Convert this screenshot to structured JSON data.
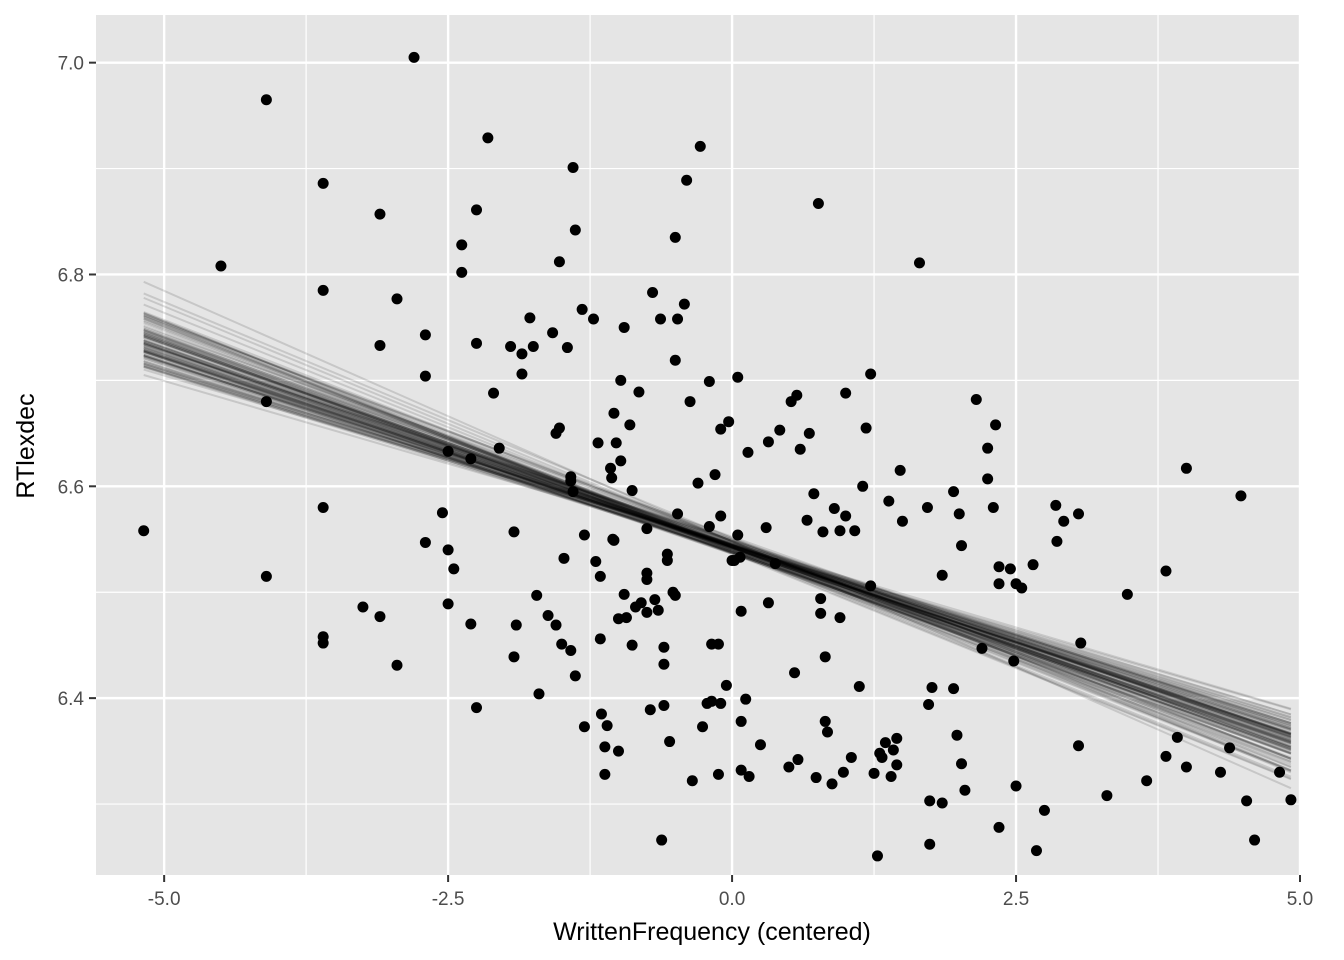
{
  "chart_data": {
    "type": "scatter",
    "title": "",
    "xlabel": "WrittenFrequency (centered)",
    "ylabel": "RTlexdec",
    "xlim": [
      -5.6,
      5.0
    ],
    "ylim": [
      6.233,
      7.045
    ],
    "x_ticks": [
      -5.0,
      -2.5,
      0.0,
      2.5,
      5.0
    ],
    "x_tick_labels": [
      "-5.0",
      "-2.5",
      "0.0",
      "2.5",
      "5.0"
    ],
    "y_ticks": [
      6.4,
      6.6,
      6.8,
      7.0
    ],
    "y_tick_labels": [
      "6.4",
      "6.6",
      "6.8",
      "7.0"
    ],
    "grid": true,
    "legend": "none",
    "colors": {
      "panel": "#e5e5e5",
      "grid": "#ffffff",
      "points": "#000000",
      "lines": "#000000"
    },
    "regression_lines": {
      "count": 100,
      "x_range": [
        -5.18,
        4.92
      ],
      "intercept_center": 6.543,
      "slope_center": -0.0378,
      "intercept_spread": 0.006,
      "slope_spread": 0.0045,
      "opacity": 0.13
    },
    "points": [
      [
        -5.18,
        6.558
      ],
      [
        -4.5,
        6.808
      ],
      [
        -4.1,
        6.965
      ],
      [
        -4.1,
        6.68
      ],
      [
        -4.1,
        6.515
      ],
      [
        -3.6,
        6.886
      ],
      [
        -3.6,
        6.785
      ],
      [
        -3.6,
        6.58
      ],
      [
        -3.6,
        6.458
      ],
      [
        -3.6,
        6.452
      ],
      [
        -3.25,
        6.486
      ],
      [
        -3.1,
        6.857
      ],
      [
        -3.1,
        6.733
      ],
      [
        -3.1,
        6.477
      ],
      [
        -2.95,
        6.777
      ],
      [
        -2.95,
        6.431
      ],
      [
        -2.8,
        7.005
      ],
      [
        -2.7,
        6.743
      ],
      [
        -2.7,
        6.704
      ],
      [
        -2.7,
        6.547
      ],
      [
        -2.55,
        6.575
      ],
      [
        -2.5,
        6.633
      ],
      [
        -2.5,
        6.54
      ],
      [
        -2.5,
        6.489
      ],
      [
        -2.45,
        6.522
      ],
      [
        -2.38,
        6.828
      ],
      [
        -2.38,
        6.802
      ],
      [
        -2.3,
        6.626
      ],
      [
        -2.3,
        6.47
      ],
      [
        -2.25,
        6.861
      ],
      [
        -2.25,
        6.735
      ],
      [
        -2.25,
        6.391
      ],
      [
        -2.15,
        6.929
      ],
      [
        -2.1,
        6.688
      ],
      [
        -2.05,
        6.636
      ],
      [
        -1.95,
        6.732
      ],
      [
        -1.92,
        6.557
      ],
      [
        -1.92,
        6.439
      ],
      [
        -1.9,
        6.469
      ],
      [
        -1.85,
        6.725
      ],
      [
        -1.85,
        6.706
      ],
      [
        -1.78,
        6.759
      ],
      [
        -1.75,
        6.732
      ],
      [
        -1.72,
        6.497
      ],
      [
        -1.7,
        6.404
      ],
      [
        -1.62,
        6.478
      ],
      [
        -1.58,
        6.745
      ],
      [
        -1.55,
        6.65
      ],
      [
        -1.55,
        6.469
      ],
      [
        -1.52,
        6.812
      ],
      [
        -1.52,
        6.655
      ],
      [
        -1.5,
        6.451
      ],
      [
        -1.48,
        6.532
      ],
      [
        -1.45,
        6.731
      ],
      [
        -1.42,
        6.609
      ],
      [
        -1.42,
        6.605
      ],
      [
        -1.42,
        6.445
      ],
      [
        -1.4,
        6.901
      ],
      [
        -1.4,
        6.595
      ],
      [
        -1.38,
        6.842
      ],
      [
        -1.38,
        6.421
      ],
      [
        -1.32,
        6.767
      ],
      [
        -1.3,
        6.554
      ],
      [
        -1.3,
        6.373
      ],
      [
        -1.22,
        6.758
      ],
      [
        -1.2,
        6.529
      ],
      [
        -1.18,
        6.641
      ],
      [
        -1.16,
        6.515
      ],
      [
        -1.16,
        6.456
      ],
      [
        -1.15,
        6.385
      ],
      [
        -1.12,
        6.354
      ],
      [
        -1.12,
        6.328
      ],
      [
        -1.1,
        6.374
      ],
      [
        -1.07,
        6.617
      ],
      [
        -1.06,
        6.608
      ],
      [
        -1.05,
        6.55
      ],
      [
        -1.04,
        6.669
      ],
      [
        -1.04,
        6.549
      ],
      [
        -1.02,
        6.641
      ],
      [
        -1.0,
        6.475
      ],
      [
        -1.0,
        6.35
      ],
      [
        -0.98,
        6.624
      ],
      [
        -0.98,
        6.7
      ],
      [
        -0.95,
        6.75
      ],
      [
        -0.95,
        6.498
      ],
      [
        -0.93,
        6.476
      ],
      [
        -0.9,
        6.658
      ],
      [
        -0.88,
        6.596
      ],
      [
        -0.88,
        6.45
      ],
      [
        -0.85,
        6.486
      ],
      [
        -0.82,
        6.689
      ],
      [
        -0.8,
        6.49
      ],
      [
        -0.75,
        6.56
      ],
      [
        -0.75,
        6.518
      ],
      [
        -0.75,
        6.512
      ],
      [
        -0.75,
        6.481
      ],
      [
        -0.72,
        6.389
      ],
      [
        -0.7,
        6.783
      ],
      [
        -0.68,
        6.493
      ],
      [
        -0.65,
        6.483
      ],
      [
        -0.63,
        6.758
      ],
      [
        -0.62,
        6.266
      ],
      [
        -0.6,
        6.448
      ],
      [
        -0.6,
        6.432
      ],
      [
        -0.6,
        6.393
      ],
      [
        -0.57,
        6.536
      ],
      [
        -0.57,
        6.53
      ],
      [
        -0.55,
        6.359
      ],
      [
        -0.52,
        6.5
      ],
      [
        -0.5,
        6.835
      ],
      [
        -0.5,
        6.719
      ],
      [
        -0.5,
        6.497
      ],
      [
        -0.48,
        6.574
      ],
      [
        -0.48,
        6.758
      ],
      [
        -0.42,
        6.772
      ],
      [
        -0.4,
        6.889
      ],
      [
        -0.37,
        6.68
      ],
      [
        -0.35,
        6.322
      ],
      [
        -0.3,
        6.603
      ],
      [
        -0.28,
        6.921
      ],
      [
        -0.26,
        6.373
      ],
      [
        -0.22,
        6.395
      ],
      [
        -0.2,
        6.699
      ],
      [
        -0.2,
        6.562
      ],
      [
        -0.18,
        6.451
      ],
      [
        -0.18,
        6.397
      ],
      [
        -0.15,
        6.611
      ],
      [
        -0.12,
        6.328
      ],
      [
        -0.12,
        6.451
      ],
      [
        -0.1,
        6.654
      ],
      [
        -0.1,
        6.395
      ],
      [
        -0.1,
        6.572
      ],
      [
        -0.05,
        6.412
      ],
      [
        -0.03,
        6.661
      ],
      [
        0.0,
        6.53
      ],
      [
        0.02,
        6.53
      ],
      [
        0.05,
        6.703
      ],
      [
        0.05,
        6.554
      ],
      [
        0.07,
        6.533
      ],
      [
        0.08,
        6.482
      ],
      [
        0.08,
        6.378
      ],
      [
        0.08,
        6.332
      ],
      [
        0.12,
        6.399
      ],
      [
        0.14,
        6.632
      ],
      [
        0.15,
        6.326
      ],
      [
        0.25,
        6.356
      ],
      [
        0.3,
        6.561
      ],
      [
        0.32,
        6.642
      ],
      [
        0.32,
        6.49
      ],
      [
        0.38,
        6.527
      ],
      [
        0.42,
        6.653
      ],
      [
        0.5,
        6.335
      ],
      [
        0.52,
        6.68
      ],
      [
        0.55,
        6.424
      ],
      [
        0.57,
        6.686
      ],
      [
        0.58,
        6.342
      ],
      [
        0.6,
        6.635
      ],
      [
        0.66,
        6.568
      ],
      [
        0.68,
        6.65
      ],
      [
        0.72,
        6.593
      ],
      [
        0.74,
        6.325
      ],
      [
        0.76,
        6.867
      ],
      [
        0.78,
        6.494
      ],
      [
        0.78,
        6.48
      ],
      [
        0.8,
        6.557
      ],
      [
        0.82,
        6.439
      ],
      [
        0.82,
        6.378
      ],
      [
        0.84,
        6.368
      ],
      [
        0.88,
        6.319
      ],
      [
        0.9,
        6.579
      ],
      [
        0.95,
        6.558
      ],
      [
        0.95,
        6.476
      ],
      [
        0.98,
        6.33
      ],
      [
        1.0,
        6.688
      ],
      [
        1.0,
        6.572
      ],
      [
        1.05,
        6.344
      ],
      [
        1.08,
        6.558
      ],
      [
        1.12,
        6.411
      ],
      [
        1.15,
        6.6
      ],
      [
        1.18,
        6.655
      ],
      [
        1.22,
        6.706
      ],
      [
        1.22,
        6.506
      ],
      [
        1.25,
        6.329
      ],
      [
        1.28,
        6.251
      ],
      [
        1.3,
        6.348
      ],
      [
        1.32,
        6.344
      ],
      [
        1.35,
        6.358
      ],
      [
        1.38,
        6.586
      ],
      [
        1.4,
        6.326
      ],
      [
        1.42,
        6.351
      ],
      [
        1.45,
        6.362
      ],
      [
        1.45,
        6.337
      ],
      [
        1.48,
        6.615
      ],
      [
        1.5,
        6.567
      ],
      [
        1.65,
        6.811
      ],
      [
        1.72,
        6.58
      ],
      [
        1.73,
        6.394
      ],
      [
        1.74,
        6.303
      ],
      [
        1.74,
        6.262
      ],
      [
        1.76,
        6.41
      ],
      [
        1.85,
        6.301
      ],
      [
        1.85,
        6.516
      ],
      [
        1.95,
        6.595
      ],
      [
        1.95,
        6.409
      ],
      [
        1.98,
        6.365
      ],
      [
        2.0,
        6.574
      ],
      [
        2.02,
        6.544
      ],
      [
        2.02,
        6.338
      ],
      [
        2.05,
        6.313
      ],
      [
        2.15,
        6.682
      ],
      [
        2.2,
        6.447
      ],
      [
        2.25,
        6.607
      ],
      [
        2.25,
        6.636
      ],
      [
        2.3,
        6.58
      ],
      [
        2.32,
        6.658
      ],
      [
        2.35,
        6.524
      ],
      [
        2.35,
        6.508
      ],
      [
        2.35,
        6.278
      ],
      [
        2.45,
        6.522
      ],
      [
        2.48,
        6.435
      ],
      [
        2.5,
        6.508
      ],
      [
        2.5,
        6.317
      ],
      [
        2.55,
        6.504
      ],
      [
        2.65,
        6.526
      ],
      [
        2.68,
        6.256
      ],
      [
        2.75,
        6.294
      ],
      [
        2.85,
        6.582
      ],
      [
        2.86,
        6.548
      ],
      [
        2.92,
        6.567
      ],
      [
        3.05,
        6.574
      ],
      [
        3.07,
        6.452
      ],
      [
        3.05,
        6.355
      ],
      [
        3.3,
        6.308
      ],
      [
        3.48,
        6.498
      ],
      [
        3.65,
        6.322
      ],
      [
        3.82,
        6.52
      ],
      [
        3.82,
        6.345
      ],
      [
        3.92,
        6.363
      ],
      [
        4.0,
        6.617
      ],
      [
        4.0,
        6.335
      ],
      [
        4.3,
        6.33
      ],
      [
        4.38,
        6.353
      ],
      [
        4.48,
        6.591
      ],
      [
        4.53,
        6.303
      ],
      [
        4.6,
        6.266
      ],
      [
        4.82,
        6.33
      ],
      [
        4.92,
        6.304
      ]
    ]
  }
}
